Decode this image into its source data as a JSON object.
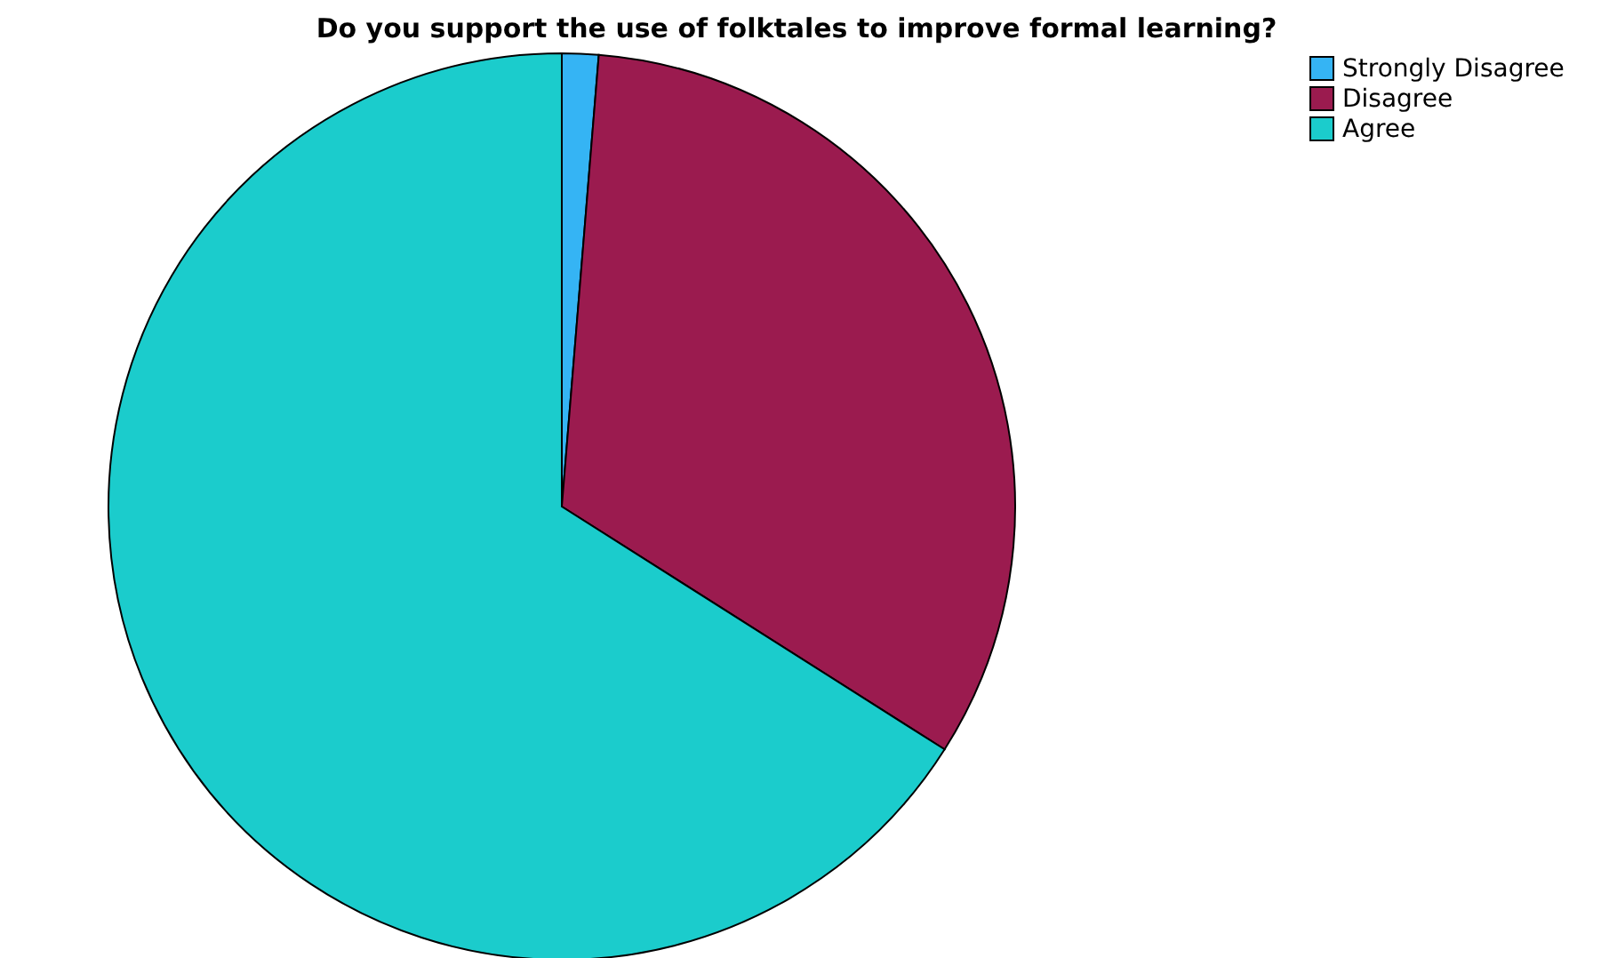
{
  "chart_data": {
    "type": "pie",
    "title": "Do you support the use of folktales to improve formal learning?",
    "categories": [
      "Strongly Disagree",
      "Disagree",
      "Agree"
    ],
    "values": [
      1.3,
      32.7,
      66
    ],
    "colors": [
      "#35b4f4",
      "#9b1b4f",
      "#1bcccc"
    ],
    "legend": "top right"
  }
}
